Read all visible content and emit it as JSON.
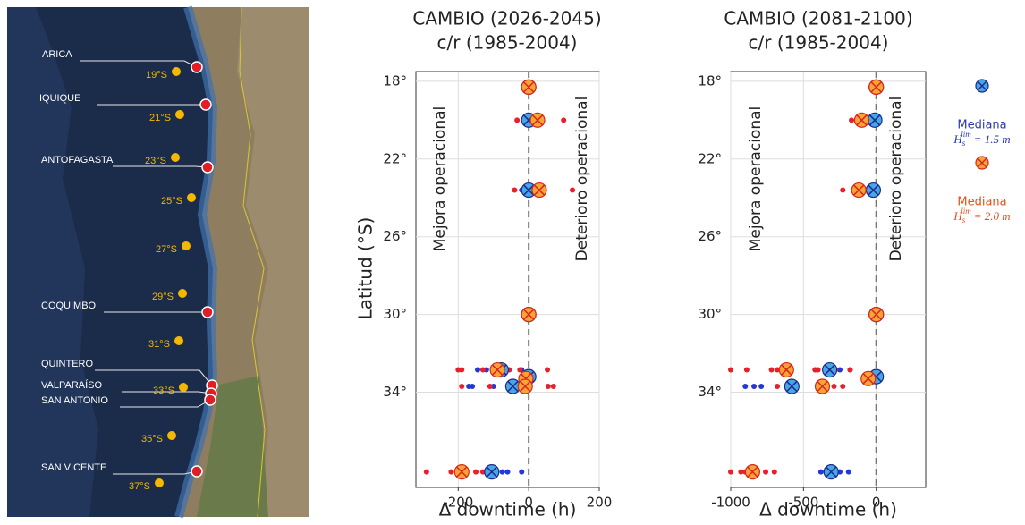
{
  "map": {
    "ports": [
      "ARICA",
      "IQUIQUE",
      "ANTOFAGASTA",
      "COQUIMBO",
      "QUINTERO",
      "VALPARAÍSO",
      "SAN ANTONIO",
      "SAN VICENTE"
    ],
    "latitudes": [
      "19°S",
      "21°S",
      "23°S",
      "25°S",
      "27°S",
      "29°S",
      "31°S",
      "33°S",
      "35°S",
      "37°S"
    ]
  },
  "chart_data": [
    {
      "type": "scatter",
      "title": "CAMBIO (2026-2045)",
      "subtitle": "c/r (1985-2004)",
      "x_label": "Δ downtime (h)",
      "y_label": "Latitud (°S)",
      "annotations": [
        "Mejora operacional",
        "Deterioro operacional"
      ],
      "xlim": [
        -320,
        200
      ],
      "xticks": [
        -200,
        0,
        200
      ],
      "ylim": [
        17.5,
        38.9
      ],
      "y_reversed": true,
      "yticks": [
        {
          "value": 18,
          "label": "18°"
        },
        {
          "value": 22,
          "label": "22°"
        },
        {
          "value": 26,
          "label": "26°"
        },
        {
          "value": 30,
          "label": "30°"
        },
        {
          "value": 34,
          "label": "34°"
        }
      ],
      "grid": true,
      "zero_line": true,
      "series": [
        {
          "marker": "dot",
          "color": "#2438d8",
          "x": [
            -20,
            -145,
            -120,
            -20,
            -170,
            -160,
            -100,
            -75,
            -60,
            -20
          ],
          "values": [
            23.6,
            32.85,
            32.85,
            32.85,
            33.7,
            33.7,
            33.7,
            38.1,
            38.1,
            38.1
          ]
        },
        {
          "marker": "dot",
          "color": "#e8202a",
          "x": [
            -33,
            99,
            -40,
            124,
            -200,
            -190,
            -130,
            -55,
            -25,
            53,
            -190,
            -110,
            55,
            70,
            -290,
            -220,
            -200,
            -150,
            -130
          ],
          "values": [
            20,
            20,
            23.6,
            23.6,
            32.85,
            32.85,
            32.85,
            32.85,
            32.85,
            32.85,
            33.7,
            33.7,
            33.7,
            33.7,
            38.1,
            38.1,
            38.1,
            38.1,
            38.1
          ]
        },
        {
          "marker": "crossed-circle",
          "color": "#47a6e6",
          "x": [
            0,
            0,
            0,
            0,
            -78,
            0,
            -45,
            -105
          ],
          "values": [
            18.3,
            20,
            23.6,
            30,
            32.85,
            33.2,
            33.7,
            38.1
          ]
        },
        {
          "marker": "crossed-circle",
          "color": "#f6a437",
          "x": [
            0,
            25,
            30,
            0,
            -89,
            -8,
            -10,
            -190
          ],
          "values": [
            18.3,
            20,
            23.6,
            30,
            32.85,
            33.3,
            33.7,
            38.1
          ]
        }
      ]
    },
    {
      "type": "scatter",
      "title": "CAMBIO (2081-2100)",
      "subtitle": "c/r (1985-2004)",
      "x_label": "Δ downtime (h)",
      "annotations": [
        "Mejora operacional",
        "Deterioro operacional"
      ],
      "xlim": [
        -1000,
        340
      ],
      "xticks": [
        -1000,
        -500,
        0
      ],
      "ylim": [
        17.5,
        38.9
      ],
      "y_reversed": true,
      "yticks": [
        {
          "value": 18,
          "label": "18°"
        },
        {
          "value": 22,
          "label": "22°"
        },
        {
          "value": 26,
          "label": "26°"
        },
        {
          "value": 30,
          "label": "30°"
        },
        {
          "value": 34,
          "label": "34°"
        }
      ],
      "grid": true,
      "zero_line": true,
      "series": [
        {
          "marker": "dot",
          "color": "#2438d8",
          "x": [
            -250,
            -420,
            -180,
            -900,
            -840,
            -790,
            -380,
            -250,
            -190
          ],
          "values": [
            32.85,
            32.85,
            32.85,
            33.7,
            33.7,
            33.7,
            38.1,
            38.1,
            38.1
          ]
        },
        {
          "marker": "dot",
          "color": "#e8202a",
          "x": [
            -170,
            -230,
            -1000,
            -890,
            -720,
            -680,
            -420,
            -400,
            -280,
            -180,
            -680,
            -290,
            -230,
            -1000,
            -930,
            -900,
            -760,
            -700
          ],
          "values": [
            20,
            23.6,
            32.85,
            32.85,
            32.85,
            32.85,
            32.85,
            32.85,
            32.85,
            32.85,
            33.7,
            33.7,
            33.7,
            38.1,
            38.1,
            38.1,
            38.1,
            38.1
          ]
        },
        {
          "marker": "crossed-circle",
          "color": "#47a6e6",
          "name": "Mediana",
          "formula": {
            "base": "H",
            "sub": "s",
            "sup": "lim",
            "rest": "= 1.5 m"
          },
          "x": [
            0,
            -10,
            -20,
            0,
            -320,
            0,
            -580,
            -310
          ],
          "values": [
            18.3,
            20,
            23.6,
            30,
            32.85,
            33.2,
            33.7,
            38.1
          ]
        },
        {
          "marker": "crossed-circle",
          "color": "#f6a437",
          "name": "Mediana",
          "formula": {
            "base": "H",
            "sub": "s",
            "sup": "lim",
            "rest": "= 2.0 m"
          },
          "x": [
            0,
            -100,
            -120,
            0,
            -617,
            -55,
            -370,
            -850
          ],
          "values": [
            18.3,
            20,
            23.6,
            30,
            32.85,
            33.3,
            33.7,
            38.1
          ]
        }
      ]
    }
  ]
}
